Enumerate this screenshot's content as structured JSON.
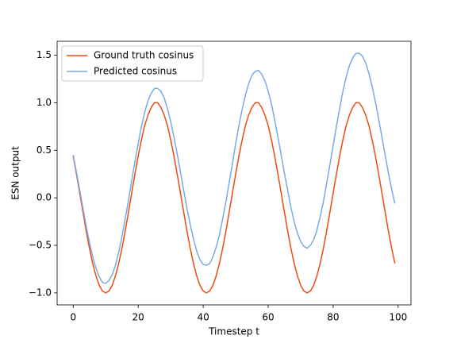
{
  "chart_data": {
    "type": "line",
    "xlabel": "Timestep t",
    "ylabel": "ESN output",
    "x": [
      0,
      1,
      2,
      3,
      4,
      5,
      6,
      7,
      8,
      9,
      10,
      11,
      12,
      13,
      14,
      15,
      16,
      17,
      18,
      19,
      20,
      21,
      22,
      23,
      24,
      25,
      26,
      27,
      28,
      29,
      30,
      31,
      32,
      33,
      34,
      35,
      36,
      37,
      38,
      39,
      40,
      41,
      42,
      43,
      44,
      45,
      46,
      47,
      48,
      49,
      50,
      51,
      52,
      53,
      54,
      55,
      56,
      57,
      58,
      59,
      60,
      61,
      62,
      63,
      64,
      65,
      66,
      67,
      68,
      69,
      70,
      71,
      72,
      73,
      74,
      75,
      76,
      77,
      78,
      79,
      80,
      81,
      82,
      83,
      84,
      85,
      86,
      87,
      88,
      89,
      90,
      91,
      92,
      93,
      94,
      95,
      96,
      97,
      98,
      99
    ],
    "series": [
      {
        "name": "Ground truth cosinus",
        "color": "#ee4a12",
        "values": [
          0.44,
          0.25,
          0.05,
          -0.15,
          -0.35,
          -0.53,
          -0.69,
          -0.82,
          -0.92,
          -0.98,
          -1.0,
          -0.98,
          -0.92,
          -0.82,
          -0.69,
          -0.53,
          -0.35,
          -0.15,
          0.05,
          0.25,
          0.44,
          0.61,
          0.76,
          0.87,
          0.95,
          1.0,
          1.0,
          0.95,
          0.87,
          0.76,
          0.61,
          0.44,
          0.25,
          0.05,
          -0.15,
          -0.35,
          -0.53,
          -0.69,
          -0.82,
          -0.92,
          -0.98,
          -1.0,
          -0.98,
          -0.92,
          -0.82,
          -0.69,
          -0.53,
          -0.35,
          -0.15,
          0.05,
          0.25,
          0.44,
          0.61,
          0.76,
          0.87,
          0.95,
          1.0,
          1.0,
          0.95,
          0.87,
          0.76,
          0.61,
          0.44,
          0.25,
          0.05,
          -0.15,
          -0.35,
          -0.53,
          -0.69,
          -0.82,
          -0.92,
          -0.98,
          -1.0,
          -0.98,
          -0.92,
          -0.82,
          -0.69,
          -0.53,
          -0.35,
          -0.15,
          0.05,
          0.25,
          0.44,
          0.61,
          0.76,
          0.87,
          0.95,
          1.0,
          1.0,
          0.95,
          0.87,
          0.76,
          0.61,
          0.44,
          0.25,
          0.05,
          -0.15,
          -0.35,
          -0.53,
          -0.69
        ]
      },
      {
        "name": "Predicted cosinus",
        "color": "#7ca8e8",
        "values": [
          0.45,
          0.27,
          0.08,
          -0.11,
          -0.3,
          -0.47,
          -0.62,
          -0.74,
          -0.83,
          -0.89,
          -0.9,
          -0.87,
          -0.81,
          -0.71,
          -0.57,
          -0.41,
          -0.22,
          -0.03,
          0.18,
          0.38,
          0.57,
          0.75,
          0.9,
          1.02,
          1.1,
          1.15,
          1.15,
          1.12,
          1.05,
          0.94,
          0.8,
          0.64,
          0.46,
          0.27,
          0.08,
          -0.11,
          -0.28,
          -0.43,
          -0.56,
          -0.65,
          -0.7,
          -0.71,
          -0.69,
          -0.62,
          -0.52,
          -0.39,
          -0.22,
          -0.04,
          0.16,
          0.36,
          0.57,
          0.76,
          0.93,
          1.08,
          1.2,
          1.29,
          1.33,
          1.34,
          1.3,
          1.23,
          1.12,
          0.99,
          0.82,
          0.64,
          0.45,
          0.26,
          0.08,
          -0.1,
          -0.25,
          -0.37,
          -0.46,
          -0.51,
          -0.53,
          -0.5,
          -0.44,
          -0.34,
          -0.2,
          -0.04,
          0.15,
          0.35,
          0.55,
          0.75,
          0.94,
          1.12,
          1.27,
          1.39,
          1.47,
          1.52,
          1.52,
          1.49,
          1.42,
          1.31,
          1.17,
          1.01,
          0.83,
          0.64,
          0.45,
          0.26,
          0.09,
          -0.06
        ]
      }
    ],
    "xlim": [
      -4.95,
      103.95
    ],
    "xticks": [
      0,
      20,
      40,
      60,
      80,
      100
    ],
    "ylim": [
      -1.126,
      1.646
    ],
    "yticks": [
      {
        "value": -1.0,
        "label": "−1.0"
      },
      {
        "value": -0.5,
        "label": "−0.5"
      },
      {
        "value": 0.0,
        "label": "0.0"
      },
      {
        "value": 0.5,
        "label": "0.5"
      },
      {
        "value": 1.0,
        "label": "1.0"
      },
      {
        "value": 1.5,
        "label": "1.5"
      }
    ],
    "grid": false,
    "legend": "upper left"
  }
}
